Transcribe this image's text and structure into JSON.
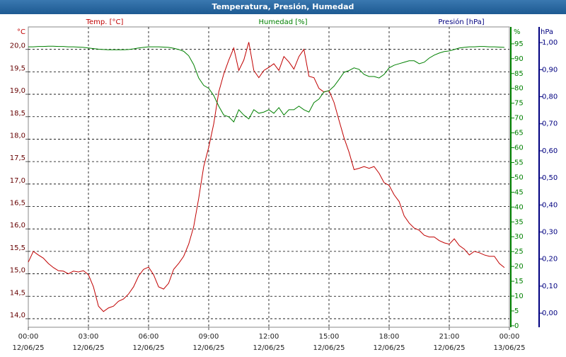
{
  "chart_data": {
    "type": "line",
    "title": "Temperatura, Presión, Humedad",
    "x": [
      0,
      0.25,
      0.5,
      0.75,
      1,
      1.25,
      1.5,
      1.75,
      2,
      2.25,
      2.5,
      2.75,
      3,
      3.25,
      3.5,
      3.75,
      4,
      4.25,
      4.5,
      4.75,
      5,
      5.25,
      5.5,
      5.75,
      6,
      6.25,
      6.5,
      6.75,
      7,
      7.25,
      7.5,
      7.75,
      8,
      8.25,
      8.5,
      8.75,
      9,
      9.25,
      9.5,
      9.75,
      10,
      10.25,
      10.5,
      10.75,
      11,
      11.25,
      11.5,
      11.75,
      12,
      12.25,
      12.5,
      12.75,
      13,
      13.25,
      13.5,
      13.75,
      14,
      14.25,
      14.5,
      14.75,
      15,
      15.25,
      15.5,
      15.75,
      16,
      16.25,
      16.5,
      16.75,
      17,
      17.25,
      17.5,
      17.75,
      18,
      18.25,
      18.5,
      18.75,
      19,
      19.25,
      19.5,
      19.75,
      20,
      20.25,
      20.5,
      20.75,
      21,
      21.25,
      21.5,
      21.75,
      22,
      22.25,
      22.5,
      22.75,
      23,
      23.25,
      23.5,
      23.75
    ],
    "xlim": [
      0,
      24
    ],
    "xticks": [
      {
        "value": 0,
        "label": "00:00"
      },
      {
        "value": 3,
        "label": "03:00"
      },
      {
        "value": 6,
        "label": "06:00"
      },
      {
        "value": 9,
        "label": "09:00"
      },
      {
        "value": 12,
        "label": "12:00"
      },
      {
        "value": 15,
        "label": "15:00"
      },
      {
        "value": 18,
        "label": "18:00"
      },
      {
        "value": 21,
        "label": "21:00"
      },
      {
        "value": 24,
        "label": "00:00"
      }
    ],
    "xtick_dates": [
      "12/06/25",
      "12/06/25",
      "12/06/25",
      "12/06/25",
      "12/06/25",
      "12/06/25",
      "12/06/25",
      "12/06/25",
      "13/06/25"
    ],
    "y_label": "°C",
    "ylim": [
      13.81,
      20.5
    ],
    "yticks": [
      {
        "value": 14,
        "label": "14,0"
      },
      {
        "value": 14.5,
        "label": "14,5"
      },
      {
        "value": 15,
        "label": "15,0"
      },
      {
        "value": 15.5,
        "label": "15,5"
      },
      {
        "value": 16,
        "label": "16,0"
      },
      {
        "value": 16.5,
        "label": "16,5"
      },
      {
        "value": 17,
        "label": "17,0"
      },
      {
        "value": 17.5,
        "label": "17,5"
      },
      {
        "value": 18,
        "label": "18,0"
      },
      {
        "value": 18.5,
        "label": "18,5"
      },
      {
        "value": 19,
        "label": "19,0"
      },
      {
        "value": 19.5,
        "label": "19,5"
      },
      {
        "value": 20,
        "label": "20,0"
      }
    ],
    "y2_label": "%",
    "y2lim": [
      -0.5,
      100.7
    ],
    "y2ticks": [
      0,
      5,
      10,
      15,
      20,
      25,
      30,
      35,
      40,
      45,
      50,
      55,
      60,
      65,
      70,
      75,
      80,
      85,
      90,
      95
    ],
    "y3_label": "hPa",
    "y3_title": "Presión [hPa]",
    "y3_color": "#000080",
    "y3lim": [
      -0.052,
      1.058
    ],
    "y3ticks": [
      {
        "value": 0,
        "label": "0,00"
      },
      {
        "value": 0.1,
        "label": "0,10"
      },
      {
        "value": 0.2,
        "label": "0,20"
      },
      {
        "value": 0.3,
        "label": "0,30"
      },
      {
        "value": 0.4,
        "label": "0,40"
      },
      {
        "value": 0.5,
        "label": "0,50"
      },
      {
        "value": 0.6,
        "label": "0,60"
      },
      {
        "value": 0.7,
        "label": "0,70"
      },
      {
        "value": 0.8,
        "label": "0,80"
      },
      {
        "value": 0.9,
        "label": "0,90"
      },
      {
        "value": 1,
        "label": "1,00"
      }
    ],
    "grid": true,
    "series": [
      {
        "name": "Temp. [°C]",
        "color": "#c00000",
        "axis": "y",
        "values": [
          15.26,
          15.5,
          15.42,
          15.35,
          15.23,
          15.14,
          15.07,
          15.06,
          15.0,
          15.06,
          15.04,
          15.07,
          14.98,
          14.71,
          14.28,
          14.16,
          14.24,
          14.28,
          14.39,
          14.44,
          14.55,
          14.71,
          14.95,
          15.1,
          15.15,
          14.98,
          14.71,
          14.66,
          14.79,
          15.1,
          15.23,
          15.39,
          15.66,
          16.05,
          16.68,
          17.39,
          17.82,
          18.34,
          19.05,
          19.45,
          19.76,
          20.03,
          19.53,
          19.76,
          20.16,
          19.53,
          19.37,
          19.53,
          19.6,
          19.68,
          19.53,
          19.84,
          19.72,
          19.56,
          19.84,
          20.0,
          19.4,
          19.37,
          19.13,
          19.05,
          19.08,
          18.82,
          18.42,
          18.03,
          17.71,
          17.32,
          17.35,
          17.39,
          17.35,
          17.39,
          17.24,
          17.03,
          16.97,
          16.76,
          16.61,
          16.29,
          16.13,
          16.02,
          15.97,
          15.86,
          15.82,
          15.82,
          15.74,
          15.69,
          15.66,
          15.78,
          15.63,
          15.55,
          15.42,
          15.5,
          15.47,
          15.42,
          15.39,
          15.39,
          15.23,
          15.14
        ]
      },
      {
        "name": "Humedad [%]",
        "color": "#008000",
        "axis": "y2",
        "values": [
          94,
          94,
          94.1,
          94.1,
          94.2,
          94.2,
          94.1,
          94.1,
          94,
          94,
          93.9,
          93.8,
          93.6,
          93.4,
          93.2,
          93.1,
          93,
          93,
          93,
          93,
          93.1,
          93.3,
          93.6,
          93.8,
          94,
          94,
          94,
          93.9,
          93.8,
          93.5,
          93.1,
          92.5,
          91,
          88,
          83.5,
          81,
          80,
          77.6,
          74,
          71,
          70.4,
          68.7,
          72.8,
          71,
          69.7,
          72.8,
          71.6,
          72,
          72.8,
          71.6,
          73.5,
          71,
          72.8,
          72.8,
          74,
          72.8,
          72,
          75.2,
          76.4,
          78.8,
          79.2,
          80.7,
          83,
          85.4,
          86,
          86.9,
          86.4,
          84.7,
          84,
          84,
          83.5,
          84.7,
          86.9,
          87.8,
          88.3,
          88.8,
          89.3,
          89.3,
          88.3,
          88.8,
          90.2,
          91.2,
          91.9,
          92.4,
          92.6,
          93.1,
          93.6,
          93.8,
          94,
          94,
          94.1,
          94.1,
          94,
          94,
          93.9,
          93.8
        ]
      }
    ]
  }
}
